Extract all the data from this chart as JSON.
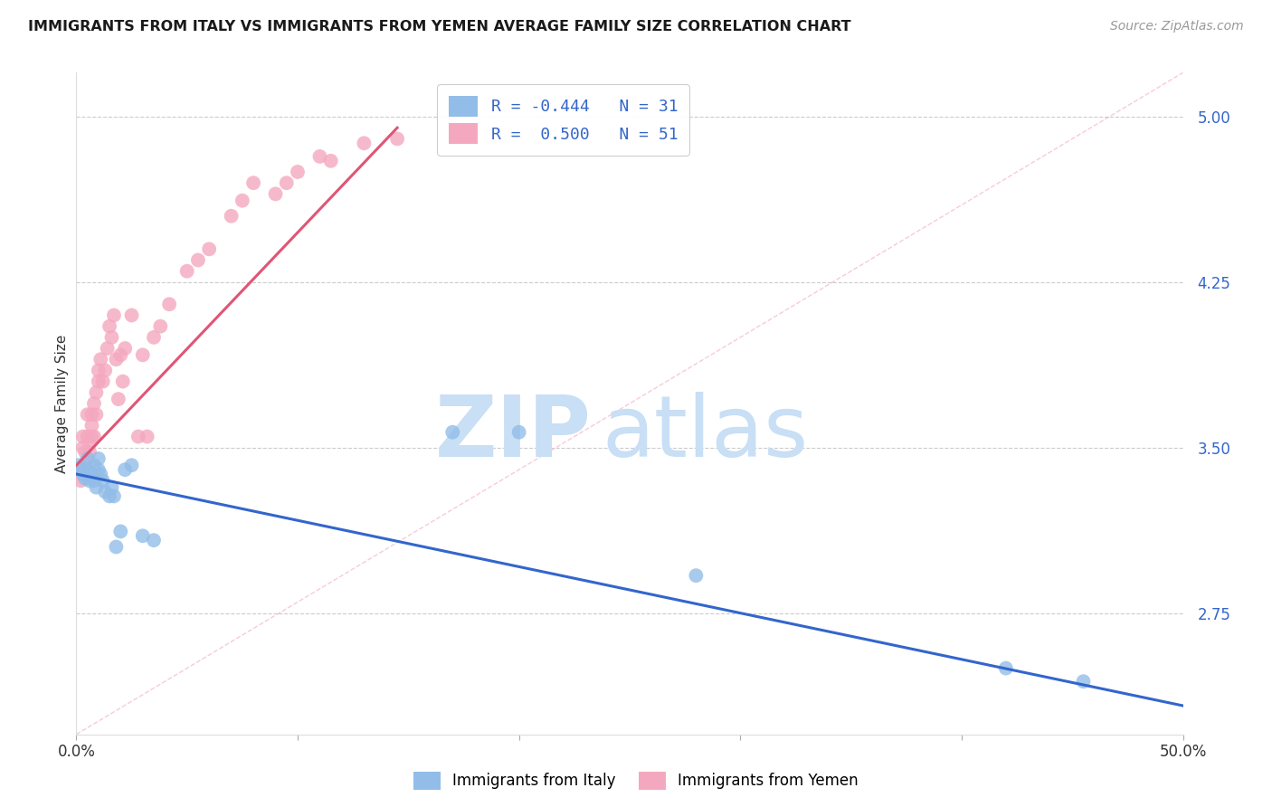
{
  "title": "IMMIGRANTS FROM ITALY VS IMMIGRANTS FROM YEMEN AVERAGE FAMILY SIZE CORRELATION CHART",
  "source": "Source: ZipAtlas.com",
  "ylabel": "Average Family Size",
  "yticks": [
    2.75,
    3.5,
    4.25,
    5.0
  ],
  "ytick_labels": [
    "2.75",
    "3.50",
    "4.25",
    "5.00"
  ],
  "xlim": [
    0.0,
    0.5
  ],
  "ylim": [
    2.2,
    5.2
  ],
  "legend_italy_R": "-0.444",
  "legend_italy_N": "31",
  "legend_yemen_R": "0.500",
  "legend_yemen_N": "51",
  "italy_color": "#92bde8",
  "yemen_color": "#f4a8c0",
  "italy_line_color": "#3366cc",
  "yemen_line_color": "#e05575",
  "italy_scatter_x": [
    0.001,
    0.002,
    0.003,
    0.004,
    0.005,
    0.005,
    0.006,
    0.006,
    0.007,
    0.008,
    0.008,
    0.009,
    0.01,
    0.01,
    0.011,
    0.012,
    0.013,
    0.015,
    0.016,
    0.017,
    0.018,
    0.02,
    0.022,
    0.025,
    0.03,
    0.035,
    0.17,
    0.2,
    0.28,
    0.42,
    0.455
  ],
  "italy_scatter_y": [
    3.42,
    3.4,
    3.38,
    3.36,
    3.45,
    3.4,
    3.38,
    3.35,
    3.38,
    3.42,
    3.35,
    3.32,
    3.45,
    3.4,
    3.38,
    3.35,
    3.3,
    3.28,
    3.32,
    3.28,
    3.05,
    3.12,
    3.4,
    3.42,
    3.1,
    3.08,
    3.57,
    3.57,
    2.92,
    2.5,
    2.44
  ],
  "yemen_scatter_x": [
    0.001,
    0.002,
    0.003,
    0.003,
    0.004,
    0.004,
    0.005,
    0.005,
    0.006,
    0.006,
    0.007,
    0.007,
    0.007,
    0.008,
    0.008,
    0.009,
    0.009,
    0.01,
    0.01,
    0.011,
    0.012,
    0.013,
    0.014,
    0.015,
    0.016,
    0.017,
    0.018,
    0.019,
    0.02,
    0.021,
    0.022,
    0.025,
    0.028,
    0.03,
    0.032,
    0.035,
    0.038,
    0.042,
    0.05,
    0.055,
    0.06,
    0.07,
    0.075,
    0.08,
    0.09,
    0.095,
    0.1,
    0.11,
    0.115,
    0.13,
    0.145
  ],
  "yemen_scatter_y": [
    3.4,
    3.35,
    3.5,
    3.55,
    3.42,
    3.48,
    3.55,
    3.65,
    3.48,
    3.52,
    3.55,
    3.6,
    3.65,
    3.55,
    3.7,
    3.65,
    3.75,
    3.8,
    3.85,
    3.9,
    3.8,
    3.85,
    3.95,
    4.05,
    4.0,
    4.1,
    3.9,
    3.72,
    3.92,
    3.8,
    3.95,
    4.1,
    3.55,
    3.92,
    3.55,
    4.0,
    4.05,
    4.15,
    4.3,
    4.35,
    4.4,
    4.55,
    4.62,
    4.7,
    4.65,
    4.7,
    4.75,
    4.82,
    4.8,
    4.88,
    4.9
  ],
  "background_color": "#ffffff",
  "grid_color": "#cccccc",
  "diag_line_color": "#f4a8c0",
  "watermark_zip_color": "#c8dff5",
  "watermark_atlas_color": "#c8dff5"
}
